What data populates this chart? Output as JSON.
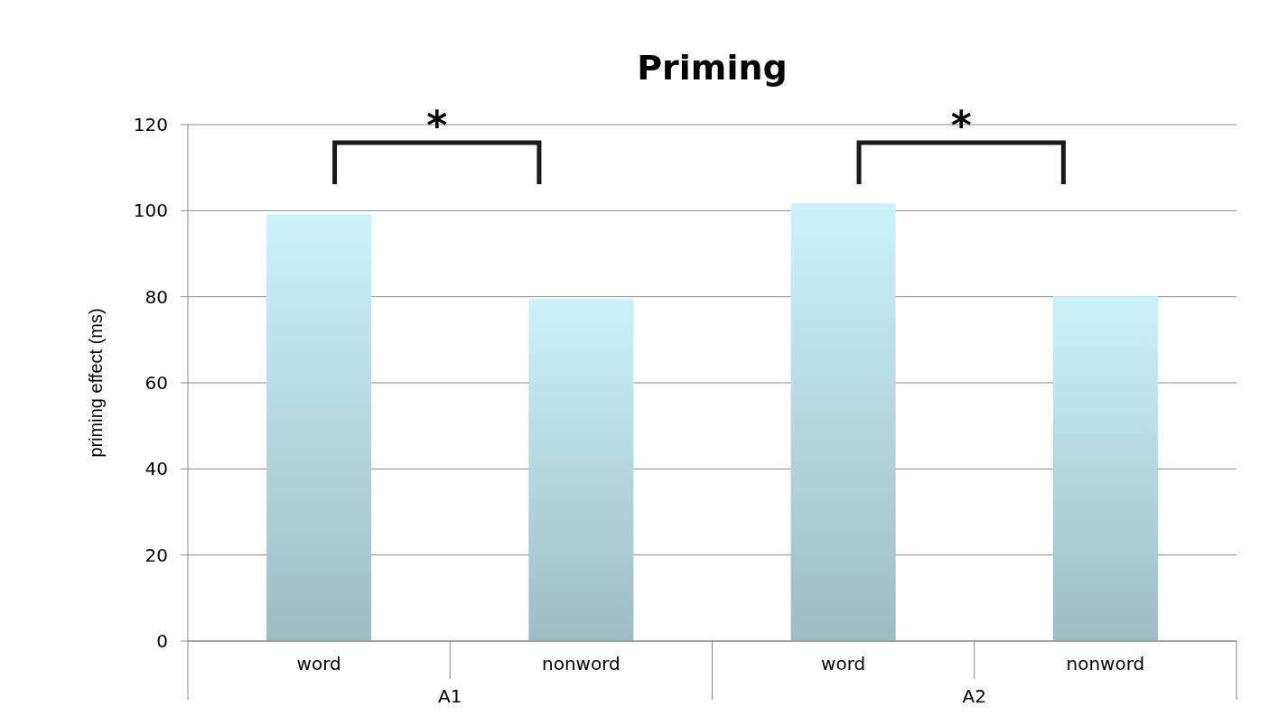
{
  "chart_data": {
    "type": "bar",
    "title": "Priming",
    "ylabel": "priming effect (ms)",
    "categories": [
      "word",
      "nonword",
      "word",
      "nonword"
    ],
    "values": [
      99.2,
      79.5,
      101.7,
      80.1
    ],
    "color": "#b3d6dd",
    "ylim": [
      0,
      120
    ],
    "yticks": [
      0,
      20,
      40,
      60,
      80,
      100,
      120
    ],
    "grid": "y",
    "annotations": [
      "*",
      "*",
      "A1",
      "A2"
    ]
  }
}
